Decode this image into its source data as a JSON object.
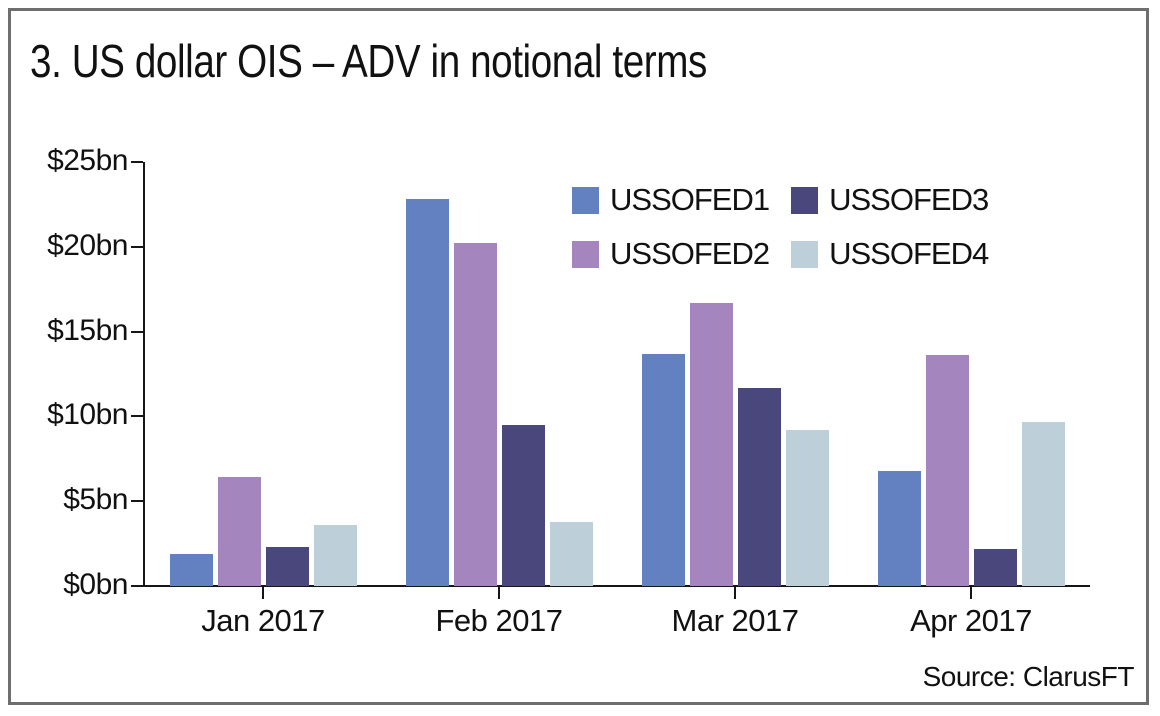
{
  "window": {
    "title": "3. US dollar OIS – ADV in notional terms"
  },
  "chart_data": {
    "type": "bar",
    "title": "3. US dollar OIS – ADV in notional terms",
    "categories": [
      "Jan 2017",
      "Feb 2017",
      "Mar 2017",
      "Apr 2017"
    ],
    "series": [
      {
        "name": "USSOFED1",
        "color": "#6380c0",
        "values": [
          1.9,
          22.8,
          13.7,
          6.8
        ]
      },
      {
        "name": "USSOFED2",
        "color": "#a585bd",
        "values": [
          6.4,
          20.2,
          16.7,
          13.6
        ]
      },
      {
        "name": "USSOFED3",
        "color": "#4a477c",
        "values": [
          2.3,
          9.5,
          11.7,
          2.2
        ]
      },
      {
        "name": "USSOFED4",
        "color": "#bdcfd8",
        "values": [
          3.6,
          3.8,
          9.2,
          9.7
        ]
      }
    ],
    "ylabel": "",
    "xlabel": "",
    "ylim": [
      0,
      25
    ],
    "ytick_values": [
      25,
      20,
      15,
      10,
      5,
      0
    ],
    "ytick_labels": [
      "$25bn",
      "$20bn",
      "$15bn",
      "$10bn",
      "$5bn",
      "$0bn"
    ],
    "grid": false,
    "legend_position": "inside-top-right",
    "source": "Source: ClarusFT"
  }
}
